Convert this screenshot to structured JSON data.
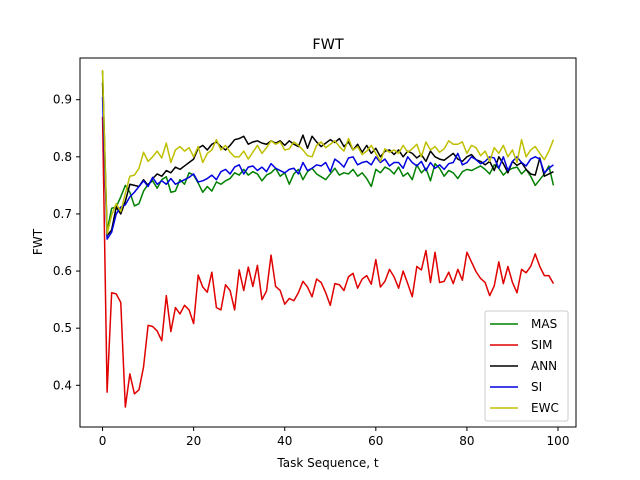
{
  "chart_data": {
    "type": "line",
    "title": "FWT",
    "xlabel": "Task Sequence, t",
    "ylabel": "FWT",
    "xlim": [
      -4.95,
      103.95
    ],
    "ylim": [
      0.327,
      0.973
    ],
    "xticks": [
      0,
      20,
      40,
      60,
      80,
      100
    ],
    "yticks": [
      0.4,
      0.5,
      0.6,
      0.7,
      0.8,
      0.9
    ],
    "xtick_labels": [
      "0",
      "20",
      "40",
      "60",
      "80",
      "100"
    ],
    "ytick_labels": [
      "0.4",
      "0.5",
      "0.6",
      "0.7",
      "0.8",
      "0.9"
    ],
    "grid": false,
    "legend_position": "lower right",
    "series": [
      {
        "name": "MAS",
        "color": "#008000",
        "values": [
          0.95,
          0.67,
          0.71,
          0.712,
          0.73,
          0.75,
          0.738,
          0.714,
          0.718,
          0.74,
          0.752,
          0.758,
          0.745,
          0.76,
          0.765,
          0.738,
          0.74,
          0.76,
          0.752,
          0.772,
          0.768,
          0.754,
          0.738,
          0.748,
          0.74,
          0.756,
          0.752,
          0.758,
          0.762,
          0.772,
          0.768,
          0.778,
          0.768,
          0.774,
          0.77,
          0.758,
          0.768,
          0.772,
          0.78,
          0.766,
          0.772,
          0.752,
          0.77,
          0.778,
          0.76,
          0.774,
          0.78,
          0.77,
          0.765,
          0.76,
          0.77,
          0.78,
          0.768,
          0.772,
          0.77,
          0.778,
          0.766,
          0.772,
          0.762,
          0.748,
          0.778,
          0.772,
          0.782,
          0.778,
          0.77,
          0.782,
          0.766,
          0.772,
          0.76,
          0.786,
          0.772,
          0.78,
          0.758,
          0.788,
          0.78,
          0.766,
          0.776,
          0.772,
          0.762,
          0.774,
          0.778,
          0.776,
          0.78,
          0.784,
          0.778,
          0.77,
          0.786,
          0.78,
          0.768,
          0.776,
          0.78,
          0.782,
          0.77,
          0.778,
          0.766,
          0.75,
          0.76,
          0.77,
          0.784,
          0.75
        ]
      },
      {
        "name": "SIM",
        "color": "#e00000",
        "values": [
          0.87,
          0.388,
          0.562,
          0.56,
          0.545,
          0.362,
          0.42,
          0.385,
          0.392,
          0.432,
          0.505,
          0.503,
          0.495,
          0.478,
          0.557,
          0.494,
          0.536,
          0.525,
          0.54,
          0.532,
          0.508,
          0.593,
          0.572,
          0.563,
          0.598,
          0.536,
          0.532,
          0.576,
          0.566,
          0.532,
          0.602,
          0.566,
          0.607,
          0.573,
          0.61,
          0.55,
          0.565,
          0.628,
          0.573,
          0.566,
          0.542,
          0.552,
          0.548,
          0.562,
          0.582,
          0.572,
          0.555,
          0.586,
          0.58,
          0.562,
          0.54,
          0.578,
          0.576,
          0.566,
          0.59,
          0.596,
          0.57,
          0.586,
          0.592,
          0.577,
          0.62,
          0.572,
          0.582,
          0.603,
          0.59,
          0.57,
          0.6,
          0.578,
          0.555,
          0.608,
          0.602,
          0.636,
          0.58,
          0.633,
          0.58,
          0.582,
          0.598,
          0.578,
          0.603,
          0.584,
          0.633,
          0.616,
          0.599,
          0.587,
          0.58,
          0.557,
          0.574,
          0.616,
          0.578,
          0.608,
          0.58,
          0.562,
          0.603,
          0.597,
          0.608,
          0.63,
          0.608,
          0.592,
          0.592,
          0.578
        ]
      },
      {
        "name": "ANN",
        "color": "#000000",
        "values": [
          0.93,
          0.662,
          0.672,
          0.712,
          0.7,
          0.722,
          0.752,
          0.75,
          0.748,
          0.76,
          0.75,
          0.762,
          0.77,
          0.766,
          0.776,
          0.772,
          0.782,
          0.778,
          0.784,
          0.79,
          0.796,
          0.815,
          0.82,
          0.812,
          0.822,
          0.826,
          0.818,
          0.812,
          0.82,
          0.83,
          0.832,
          0.836,
          0.822,
          0.826,
          0.828,
          0.824,
          0.822,
          0.828,
          0.824,
          0.828,
          0.82,
          0.828,
          0.822,
          0.818,
          0.838,
          0.815,
          0.836,
          0.826,
          0.818,
          0.824,
          0.83,
          0.825,
          0.832,
          0.818,
          0.826,
          0.812,
          0.822,
          0.808,
          0.82,
          0.806,
          0.815,
          0.8,
          0.81,
          0.812,
          0.804,
          0.812,
          0.8,
          0.81,
          0.806,
          0.798,
          0.804,
          0.792,
          0.81,
          0.8,
          0.796,
          0.794,
          0.8,
          0.806,
          0.796,
          0.792,
          0.8,
          0.804,
          0.795,
          0.792,
          0.786,
          0.792,
          0.776,
          0.8,
          0.788,
          0.772,
          0.792,
          0.785,
          0.79,
          0.778,
          0.77,
          0.768,
          0.798,
          0.766,
          0.77,
          0.774
        ]
      },
      {
        "name": "SI",
        "color": "#0000e0",
        "values": [
          0.905,
          0.656,
          0.668,
          0.7,
          0.712,
          0.716,
          0.73,
          0.738,
          0.748,
          0.758,
          0.748,
          0.764,
          0.752,
          0.758,
          0.752,
          0.762,
          0.752,
          0.756,
          0.76,
          0.764,
          0.77,
          0.756,
          0.758,
          0.762,
          0.768,
          0.76,
          0.774,
          0.778,
          0.77,
          0.782,
          0.786,
          0.77,
          0.782,
          0.784,
          0.776,
          0.782,
          0.774,
          0.788,
          0.78,
          0.776,
          0.772,
          0.778,
          0.78,
          0.77,
          0.79,
          0.776,
          0.78,
          0.786,
          0.784,
          0.79,
          0.774,
          0.796,
          0.79,
          0.782,
          0.798,
          0.8,
          0.786,
          0.79,
          0.792,
          0.786,
          0.8,
          0.79,
          0.796,
          0.784,
          0.79,
          0.79,
          0.78,
          0.8,
          0.79,
          0.784,
          0.792,
          0.776,
          0.79,
          0.78,
          0.786,
          0.778,
          0.788,
          0.79,
          0.806,
          0.786,
          0.79,
          0.8,
          0.795,
          0.788,
          0.792,
          0.8,
          0.798,
          0.78,
          0.8,
          0.776,
          0.792,
          0.8,
          0.79,
          0.784,
          0.796,
          0.8,
          0.796,
          0.772,
          0.78,
          0.786
        ]
      },
      {
        "name": "EWC",
        "color": "#bfbf00",
        "values": [
          0.952,
          0.665,
          0.698,
          0.718,
          0.704,
          0.736,
          0.766,
          0.768,
          0.78,
          0.808,
          0.792,
          0.8,
          0.81,
          0.798,
          0.824,
          0.79,
          0.812,
          0.818,
          0.81,
          0.816,
          0.8,
          0.818,
          0.79,
          0.806,
          0.812,
          0.83,
          0.812,
          0.82,
          0.808,
          0.8,
          0.8,
          0.81,
          0.796,
          0.808,
          0.82,
          0.806,
          0.816,
          0.828,
          0.822,
          0.826,
          0.812,
          0.814,
          0.826,
          0.82,
          0.812,
          0.802,
          0.8,
          0.82,
          0.826,
          0.816,
          0.822,
          0.828,
          0.818,
          0.81,
          0.832,
          0.812,
          0.818,
          0.804,
          0.81,
          0.82,
          0.806,
          0.792,
          0.814,
          0.808,
          0.812,
          0.806,
          0.82,
          0.808,
          0.814,
          0.822,
          0.8,
          0.826,
          0.812,
          0.818,
          0.808,
          0.814,
          0.828,
          0.822,
          0.822,
          0.826,
          0.806,
          0.82,
          0.816,
          0.802,
          0.81,
          0.792,
          0.816,
          0.806,
          0.82,
          0.8,
          0.812,
          0.79,
          0.83,
          0.8,
          0.812,
          0.818,
          0.806,
          0.795,
          0.81,
          0.83
        ]
      }
    ]
  }
}
